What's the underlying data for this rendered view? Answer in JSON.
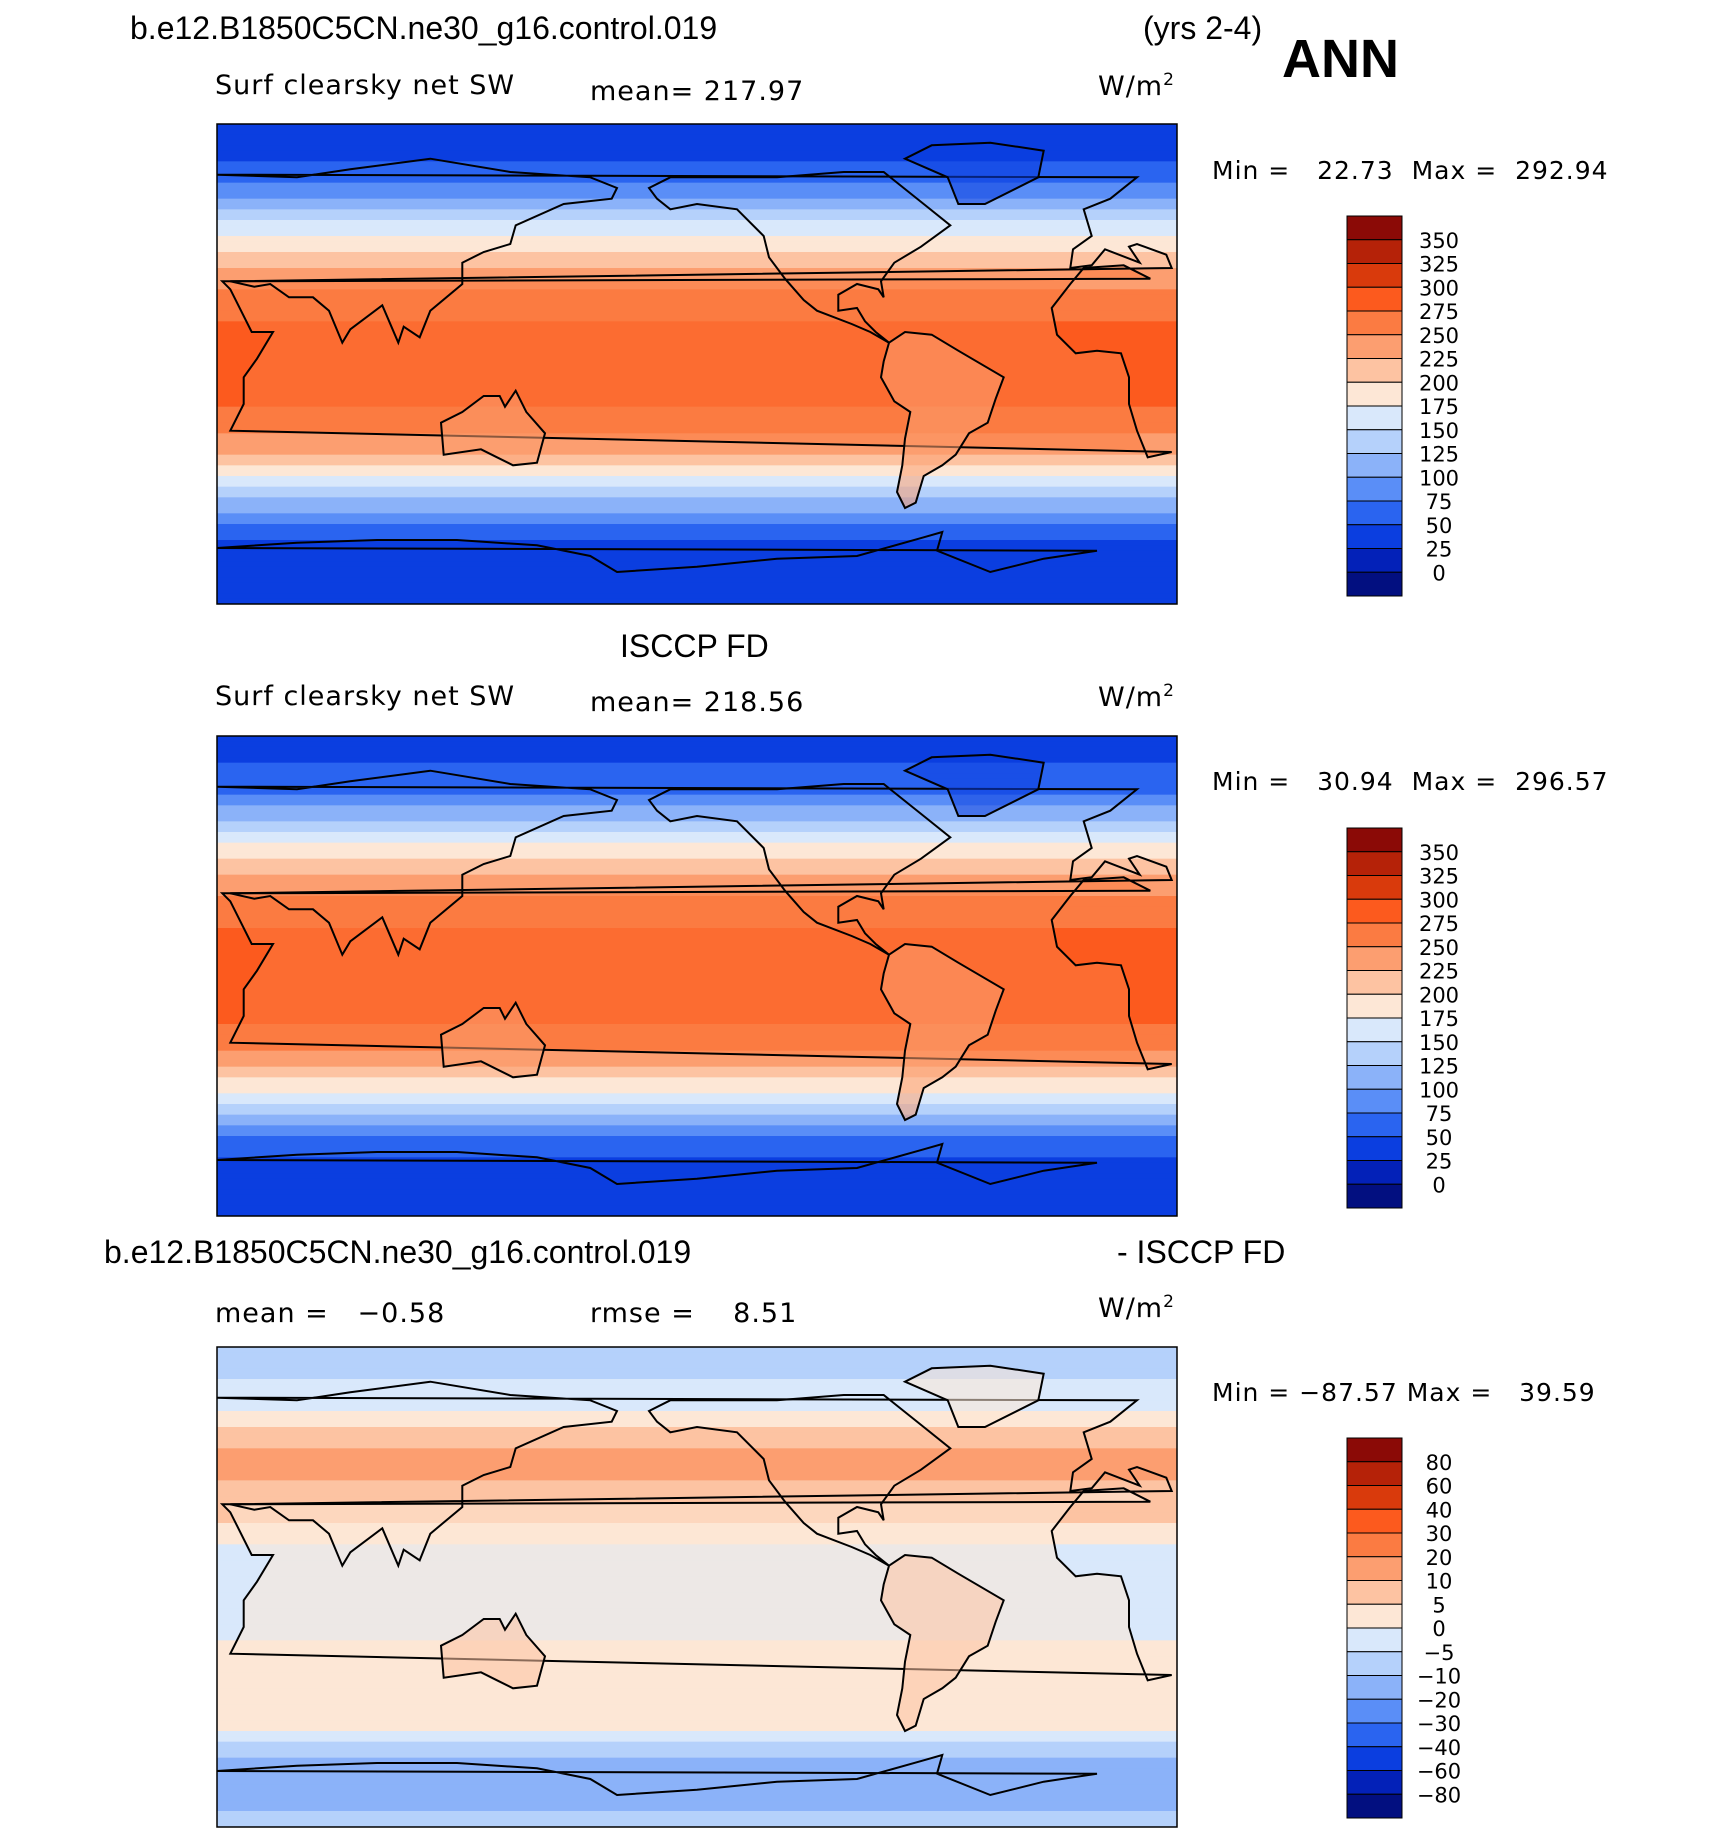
{
  "header": {
    "case_name": "b.e12.B1850C5CN.ne30_g16.control.019",
    "years": "(yrs 2-4)",
    "season": "ANN"
  },
  "panels": [
    {
      "variable": "Surf clearsky net SW",
      "mean_text": "mean=",
      "mean_value": "217.97",
      "units": "W/m",
      "units_exp": "2",
      "min_label": "Min =",
      "min_value": "22.73",
      "max_label": "Max =",
      "max_value": "292.94",
      "kind": "model"
    },
    {
      "title": "ISCCP FD",
      "variable": "Surf clearsky net SW",
      "mean_text": "mean=",
      "mean_value": "218.56",
      "units": "W/m",
      "units_exp": "2",
      "min_label": "Min =",
      "min_value": "30.94",
      "max_label": "Max =",
      "max_value": "296.57",
      "kind": "obs"
    },
    {
      "title_left": "b.e12.B1850C5CN.ne30_g16.control.019",
      "title_right": "- ISCCP FD",
      "mean_text": "mean =",
      "mean_value": "−0.58",
      "rmse_text": "rmse =",
      "rmse_value": "8.51",
      "units": "W/m",
      "units_exp": "2",
      "min_label": "Min =",
      "min_value": "−87.57",
      "max_label": "Max =",
      "max_value": "39.59",
      "kind": "diff"
    }
  ],
  "chart_data": [
    {
      "type": "heatmap",
      "title": "b.e12.B1850C5CN.ne30_g16.control.019",
      "subtitle": "Surf clearsky net SW",
      "units": "W/m2",
      "colorbar_levels": [
        "350",
        "325",
        "300",
        "275",
        "250",
        "225",
        "200",
        "175",
        "150",
        "125",
        "100",
        "75",
        "50",
        "25",
        "0"
      ],
      "colors": [
        "#8b0a06",
        "#b52208",
        "#d93a0c",
        "#fc5a1e",
        "#fb7b42",
        "#fc9e70",
        "#fdc3a2",
        "#fde7d6",
        "#d9e8fb",
        "#b5d1fb",
        "#8bb2f9",
        "#5a8ef7",
        "#2a64f0",
        "#0b3ee0",
        "#0321b8",
        "#020f80"
      ],
      "zonal_profile_lat": [
        90,
        70,
        60,
        50,
        40,
        30,
        20,
        10,
        0,
        -10,
        -20,
        -30,
        -40,
        -50,
        -60,
        -70,
        -90
      ],
      "zonal_profile_value": [
        30,
        60,
        110,
        170,
        210,
        245,
        270,
        285,
        285,
        285,
        270,
        240,
        190,
        130,
        70,
        40,
        30
      ],
      "mean": 217.97,
      "min": 22.73,
      "max": 292.94
    },
    {
      "type": "heatmap",
      "title": "ISCCP FD",
      "subtitle": "Surf clearsky net SW",
      "units": "W/m2",
      "colorbar_levels": [
        "350",
        "325",
        "300",
        "275",
        "250",
        "225",
        "200",
        "175",
        "150",
        "125",
        "100",
        "75",
        "50",
        "25",
        "0"
      ],
      "colors": [
        "#8b0a06",
        "#b52208",
        "#d93a0c",
        "#fc5a1e",
        "#fb7b42",
        "#fc9e70",
        "#fdc3a2",
        "#fde7d6",
        "#d9e8fb",
        "#b5d1fb",
        "#8bb2f9",
        "#5a8ef7",
        "#2a64f0",
        "#0b3ee0",
        "#0321b8",
        "#020f80"
      ],
      "zonal_profile_lat": [
        90,
        70,
        60,
        50,
        40,
        30,
        20,
        10,
        0,
        -10,
        -20,
        -30,
        -40,
        -50,
        -60,
        -70,
        -90
      ],
      "zonal_profile_value": [
        35,
        65,
        115,
        175,
        215,
        250,
        272,
        288,
        290,
        288,
        272,
        242,
        195,
        135,
        75,
        45,
        35
      ],
      "mean": 218.56,
      "min": 30.94,
      "max": 296.57
    },
    {
      "type": "heatmap",
      "title": "b.e12.B1850C5CN.ne30_g16.control.019 - ISCCP FD",
      "units": "W/m2",
      "colorbar_levels": [
        "80",
        "60",
        "40",
        "30",
        "20",
        "10",
        "5",
        "0",
        "−5",
        "−10",
        "−20",
        "−30",
        "−40",
        "−60",
        "−80"
      ],
      "colors": [
        "#8b0a06",
        "#b52208",
        "#d93a0c",
        "#fc5a1e",
        "#fb7b42",
        "#fc9e70",
        "#fdc3a2",
        "#fde7d6",
        "#d9e8fb",
        "#b5d1fb",
        "#8bb2f9",
        "#5a8ef7",
        "#2a64f0",
        "#0b3ee0",
        "#0321b8",
        "#020f80"
      ],
      "zonal_profile_lat": [
        90,
        70,
        50,
        30,
        10,
        -10,
        -30,
        -50,
        -70,
        -90
      ],
      "zonal_profile_value": [
        -8,
        -3,
        12,
        8,
        -3,
        -3,
        3,
        3,
        -15,
        -8
      ],
      "mean": -0.58,
      "rmse": 8.51,
      "min": -87.57,
      "max": 39.59
    }
  ]
}
